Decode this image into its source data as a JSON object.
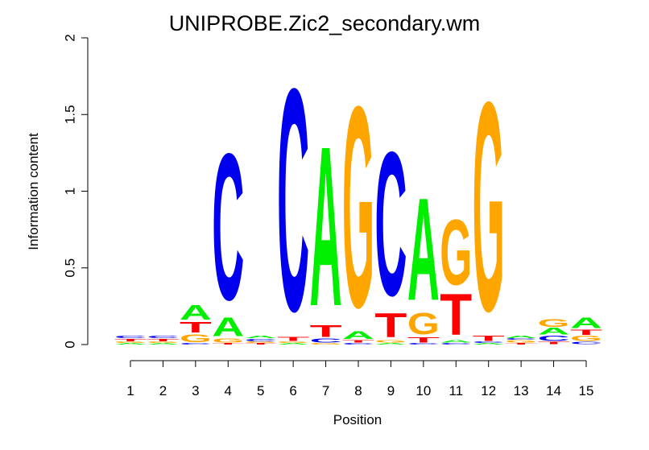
{
  "chart_data": {
    "type": "sequence-logo",
    "title": "UNIPROBE.Zic2_secondary.wm",
    "xlabel": "Position",
    "ylabel": "Information content",
    "ylim": [
      0,
      2
    ],
    "yticks": [
      "0",
      "0.5",
      "1",
      "1.5",
      "2"
    ],
    "colors": {
      "A": "#00ee00",
      "C": "#0000ee",
      "G": "#ffa500",
      "T": "#ff0000"
    },
    "positions": [
      {
        "label": "1",
        "letters": [
          [
            "A",
            0.01
          ],
          [
            "G",
            0.01
          ],
          [
            "T",
            0.02
          ],
          [
            "C",
            0.02
          ]
        ]
      },
      {
        "label": "2",
        "letters": [
          [
            "A",
            0.01
          ],
          [
            "G",
            0.01
          ],
          [
            "T",
            0.02
          ],
          [
            "C",
            0.02
          ]
        ]
      },
      {
        "label": "3",
        "letters": [
          [
            "C",
            0.01
          ],
          [
            "G",
            0.06
          ],
          [
            "T",
            0.08
          ],
          [
            "A",
            0.11
          ]
        ]
      },
      {
        "label": "4",
        "letters": [
          [
            "T",
            0.01
          ],
          [
            "G",
            0.03
          ],
          [
            "A",
            0.14
          ],
          [
            "C",
            1.1
          ]
        ]
      },
      {
        "label": "5",
        "letters": [
          [
            "T",
            0.01
          ],
          [
            "G",
            0.01
          ],
          [
            "C",
            0.02
          ],
          [
            "A",
            0.02
          ]
        ]
      },
      {
        "label": "6",
        "letters": [
          [
            "A",
            0.01
          ],
          [
            "G",
            0.01
          ],
          [
            "T",
            0.03
          ],
          [
            "C",
            1.67
          ]
        ]
      },
      {
        "label": "7",
        "letters": [
          [
            "G",
            0.01
          ],
          [
            "C",
            0.03
          ],
          [
            "T",
            0.09
          ],
          [
            "A",
            1.2
          ]
        ]
      },
      {
        "label": "8",
        "letters": [
          [
            "C",
            0.01
          ],
          [
            "T",
            0.02
          ],
          [
            "A",
            0.06
          ],
          [
            "G",
            1.51
          ]
        ]
      },
      {
        "label": "9",
        "letters": [
          [
            "A",
            0.01
          ],
          [
            "G",
            0.02
          ],
          [
            "T",
            0.18
          ],
          [
            "C",
            1.08
          ]
        ]
      },
      {
        "label": "10",
        "letters": [
          [
            "C",
            0.01
          ],
          [
            "T",
            0.04
          ],
          [
            "G",
            0.16
          ],
          [
            "A",
            0.77
          ]
        ]
      },
      {
        "label": "11",
        "letters": [
          [
            "C",
            0.01
          ],
          [
            "A",
            0.02
          ],
          [
            "T",
            0.31
          ],
          [
            "G",
            0.49
          ]
        ]
      },
      {
        "label": "12",
        "letters": [
          [
            "A",
            0.01
          ],
          [
            "C",
            0.01
          ],
          [
            "T",
            0.04
          ],
          [
            "G",
            1.57
          ]
        ]
      },
      {
        "label": "13",
        "letters": [
          [
            "T",
            0.01
          ],
          [
            "G",
            0.02
          ],
          [
            "C",
            0.01
          ],
          [
            "A",
            0.02
          ]
        ]
      },
      {
        "label": "14",
        "letters": [
          [
            "T",
            0.02
          ],
          [
            "C",
            0.04
          ],
          [
            "A",
            0.05
          ],
          [
            "G",
            0.06
          ]
        ]
      },
      {
        "label": "15",
        "letters": [
          [
            "C",
            0.02
          ],
          [
            "G",
            0.04
          ],
          [
            "T",
            0.04
          ],
          [
            "A",
            0.08
          ]
        ]
      }
    ]
  }
}
